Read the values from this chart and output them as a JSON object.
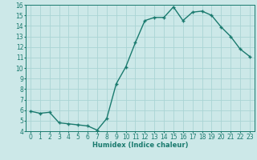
{
  "xlabel": "Humidex (Indice chaleur)",
  "ylabel": "",
  "x": [
    0,
    1,
    2,
    3,
    4,
    5,
    6,
    7,
    8,
    9,
    10,
    11,
    12,
    13,
    14,
    15,
    16,
    17,
    18,
    19,
    20,
    21,
    22,
    23
  ],
  "y": [
    5.9,
    5.7,
    5.8,
    4.8,
    4.7,
    4.6,
    4.5,
    4.1,
    5.2,
    8.5,
    10.1,
    12.4,
    14.5,
    14.8,
    14.8,
    15.8,
    14.5,
    15.3,
    15.4,
    15.0,
    13.9,
    13.0,
    11.8,
    11.1
  ],
  "line_color": "#1a7a6e",
  "marker": "+",
  "marker_size": 3,
  "bg_color": "#cce8e8",
  "grid_color": "#aad4d4",
  "ylim": [
    4,
    16
  ],
  "xlim": [
    -0.5,
    23.5
  ],
  "yticks": [
    4,
    5,
    6,
    7,
    8,
    9,
    10,
    11,
    12,
    13,
    14,
    15,
    16
  ],
  "xticks": [
    0,
    1,
    2,
    3,
    4,
    5,
    6,
    7,
    8,
    9,
    10,
    11,
    12,
    13,
    14,
    15,
    16,
    17,
    18,
    19,
    20,
    21,
    22,
    23
  ],
  "label_fontsize": 6,
  "tick_fontsize": 5.5,
  "line_width": 1.0,
  "markeredgewidth": 1.0
}
